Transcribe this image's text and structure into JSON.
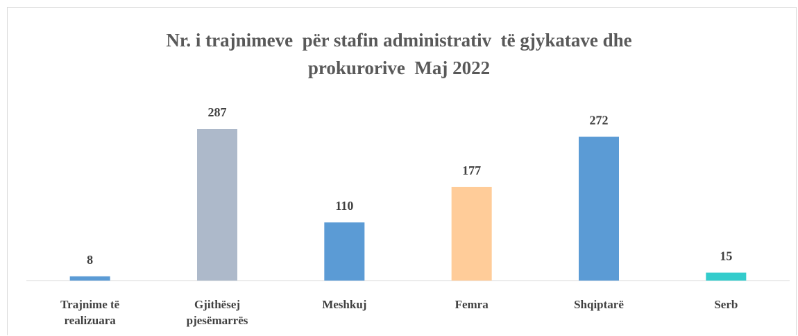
{
  "chart_data": {
    "type": "bar",
    "title": "Nr. i trajnimeve  për stafin administrativ  të gjykatave dhe prokurorive  Maj 2022",
    "categories": [
      "Trajnime të realizuara",
      "Gjithësej pjesëmarrës",
      "Meshkuj",
      "Femra",
      "Shqiptarë",
      "Serb"
    ],
    "values": [
      8,
      287,
      110,
      177,
      272,
      15
    ],
    "colors": [
      "#5b9bd5",
      "#adb9ca",
      "#5b9bd5",
      "#ffcc99",
      "#5b9bd5",
      "#33cccc"
    ]
  }
}
